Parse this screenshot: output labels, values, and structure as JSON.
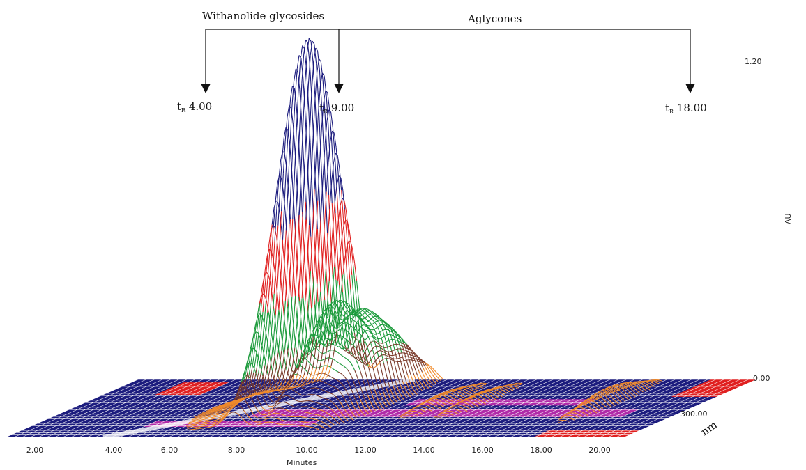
{
  "chart_data": {
    "type": "area",
    "view": "3d-surface",
    "xlabel": "Minutes",
    "zlabel": "nm",
    "x_ticks": [
      "2.00",
      "4.00",
      "6.00",
      "8.00",
      "10.00",
      "12.00",
      "14.00",
      "16.00",
      "18.00",
      "20.00"
    ],
    "z_tick": "300.00",
    "y_ticks": [
      "1.20",
      "0.00"
    ],
    "ylabel": "AU",
    "xlim": [
      2,
      21
    ],
    "ylim": [
      0,
      1.2
    ],
    "peaks": [
      {
        "x": 8.8,
        "y": 1.16
      },
      {
        "x": 9.9,
        "y": 0.3
      },
      {
        "x": 10.6,
        "y": 0.26
      },
      {
        "x": 11.2,
        "y": 0.22
      },
      {
        "x": 13.2,
        "y": 0.04
      },
      {
        "x": 14.3,
        "y": 0.04
      },
      {
        "x": 18.3,
        "y": 0.06
      }
    ],
    "annotations": {
      "group_glycosides": "Withanolide glycosides",
      "group_aglycones": "Aglycones",
      "markers": [
        {
          "prefix": "t",
          "sub": "R",
          "value": "4.00",
          "x": 4.0
        },
        {
          "prefix": "t",
          "sub": "R",
          "value": "9.00",
          "x": 9.0
        },
        {
          "prefix": "t",
          "sub": "R",
          "value": "18.00",
          "x": 18.0
        }
      ]
    },
    "colors": {
      "base": "#1c1c7e",
      "red": "#e02020",
      "magenta": "#b02aa8",
      "green": "#1a9a3a",
      "brown": "#7a3a2a",
      "orange": "#f08a2a"
    }
  }
}
